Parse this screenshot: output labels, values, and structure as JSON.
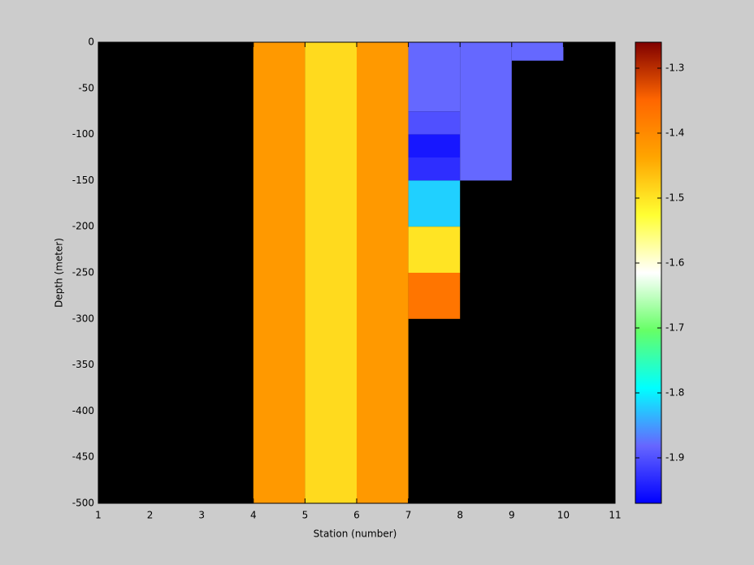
{
  "chart_data": {
    "type": "heatmap",
    "x_label": "Station (number)",
    "y_label": "Depth (meter)",
    "xlim": [
      1,
      11
    ],
    "xticks": [
      1,
      2,
      3,
      4,
      5,
      6,
      7,
      8,
      9,
      10,
      11
    ],
    "ylim": [
      -500,
      0
    ],
    "yticks": [
      0,
      -50,
      -100,
      -150,
      -200,
      -250,
      -300,
      -350,
      -400,
      -450,
      -500
    ],
    "clim": [
      -1.97,
      -1.26
    ],
    "cticks": [
      -1.3,
      -1.4,
      -1.5,
      -1.6,
      -1.7,
      -1.8,
      -1.9
    ],
    "colormap": [
      "#0000ff",
      "#6666ff",
      "#00ffff",
      "#66ff66",
      "#ffffff",
      "#ffff33",
      "#ffa500",
      "#ff6600",
      "#800000"
    ],
    "cells": [
      {
        "x": [
          4,
          5
        ],
        "y": [
          0,
          -500
        ],
        "value": -1.42
      },
      {
        "x": [
          5,
          6
        ],
        "y": [
          0,
          -500
        ],
        "value": -1.49
      },
      {
        "x": [
          6,
          7
        ],
        "y": [
          0,
          -500
        ],
        "value": -1.42
      },
      {
        "x": [
          7,
          8
        ],
        "y": [
          0,
          -75
        ],
        "value": -1.88
      },
      {
        "x": [
          7,
          8
        ],
        "y": [
          -75,
          -100
        ],
        "value": -1.9
      },
      {
        "x": [
          7,
          8
        ],
        "y": [
          -100,
          -125
        ],
        "value": -1.95
      },
      {
        "x": [
          7,
          8
        ],
        "y": [
          -125,
          -150
        ],
        "value": -1.93
      },
      {
        "x": [
          7,
          8
        ],
        "y": [
          -150,
          -200
        ],
        "value": -1.82
      },
      {
        "x": [
          7,
          8
        ],
        "y": [
          -200,
          -250
        ],
        "value": -1.5
      },
      {
        "x": [
          7,
          8
        ],
        "y": [
          -250,
          -300
        ],
        "value": -1.37
      },
      {
        "x": [
          8,
          9
        ],
        "y": [
          0,
          -150
        ],
        "value": -1.88
      },
      {
        "x": [
          9,
          10
        ],
        "y": [
          0,
          -20
        ],
        "value": -1.88
      }
    ]
  }
}
